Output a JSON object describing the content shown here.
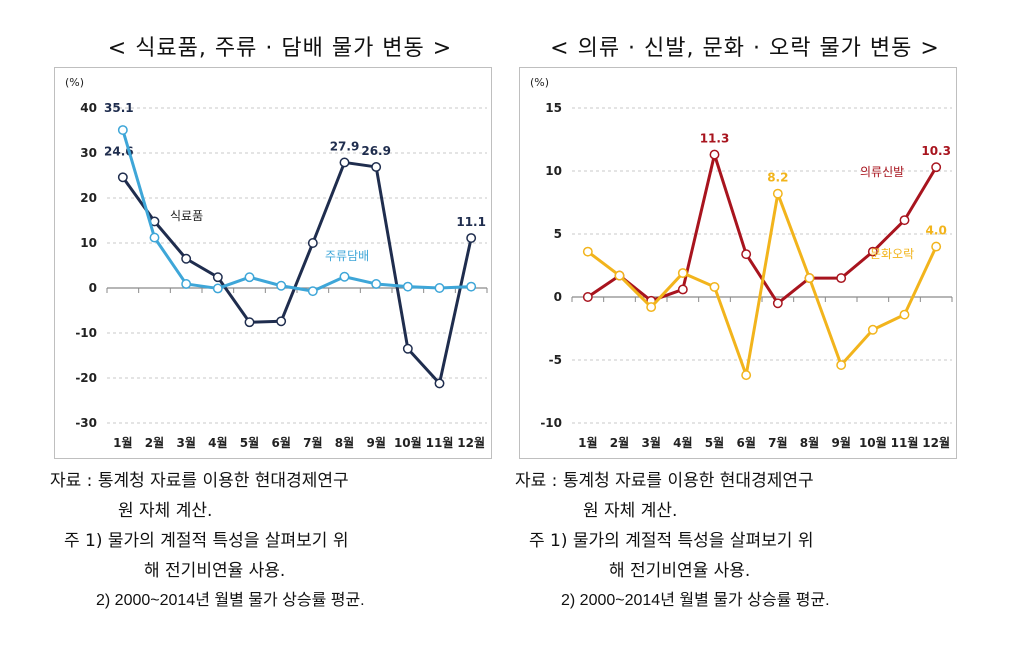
{
  "charts": [
    {
      "title": "< 식료품, 주류 · 담배 물가 변동 >",
      "unit": "(%)",
      "notes": {
        "source": "자료 : 통계청 자료를 이용한 현대경제연구",
        "source_cont": "원 자체 계산.",
        "note1": "주 1) 물가의 계절적 특성을 살펴보기 위",
        "note1_cont": "해 전기비연율 사용.",
        "note2": "2) 2000~2014년 월별 물가 상승률 평균."
      }
    },
    {
      "title": "< 의류 · 신발, 문화 · 오락 물가 변동 >",
      "unit": "(%)",
      "notes": {
        "source": "자료 : 통계청 자료를 이용한 현대경제연구",
        "source_cont": "원 자체 계산.",
        "note1": "주 1) 물가의 계절적 특성을 살펴보기 위",
        "note1_cont": "해 전기비연율 사용.",
        "note2": "2) 2000~2014년 월별 물가 상승률 평균."
      }
    }
  ],
  "chart_data": [
    {
      "type": "line",
      "categories": [
        "1월",
        "2월",
        "3월",
        "4월",
        "5월",
        "6월",
        "7월",
        "8월",
        "9월",
        "10월",
        "11월",
        "12월"
      ],
      "ylim": [
        -30,
        40
      ],
      "yticks": [
        40,
        30,
        20,
        10,
        0,
        -10,
        -20,
        -30
      ],
      "grid": true,
      "series": [
        {
          "name": "식료품",
          "color": "#1f2d4e",
          "values": [
            24.6,
            14.8,
            6.5,
            2.4,
            -7.6,
            -7.4,
            10.0,
            27.9,
            26.9,
            -13.5,
            -21.2,
            11.1
          ],
          "labels": {
            "0": "24.6",
            "7": "27.9",
            "8": "26.9",
            "11": "11.1"
          }
        },
        {
          "name": "주류담배",
          "color": "#3ea6d8",
          "values": [
            35.1,
            11.2,
            0.9,
            -0.1,
            2.4,
            0.5,
            -0.7,
            2.5,
            0.9,
            0.3,
            0.0,
            0.3
          ],
          "labels": {
            "0": "35.1"
          }
        }
      ]
    },
    {
      "type": "line",
      "categories": [
        "1월",
        "2월",
        "3월",
        "4월",
        "5월",
        "6월",
        "7월",
        "8월",
        "9월",
        "10월",
        "11월",
        "12월"
      ],
      "ylim": [
        -10,
        15
      ],
      "yticks": [
        15,
        10,
        5,
        0,
        -5,
        -10
      ],
      "grid": true,
      "series": [
        {
          "name": "의류신발",
          "color": "#a8141e",
          "values": [
            0.0,
            1.7,
            -0.3,
            0.6,
            11.3,
            3.4,
            -0.5,
            1.5,
            1.5,
            3.6,
            6.1,
            10.3
          ],
          "labels": {
            "4": "11.3",
            "11": "10.3"
          }
        },
        {
          "name": "문화오락",
          "color": "#f2b41c",
          "values": [
            3.6,
            1.7,
            -0.8,
            1.9,
            0.8,
            -6.2,
            8.2,
            1.5,
            -5.4,
            -2.6,
            -1.4,
            4.0
          ],
          "labels": {
            "6": "8.2",
            "11": "4.0"
          }
        }
      ]
    }
  ]
}
